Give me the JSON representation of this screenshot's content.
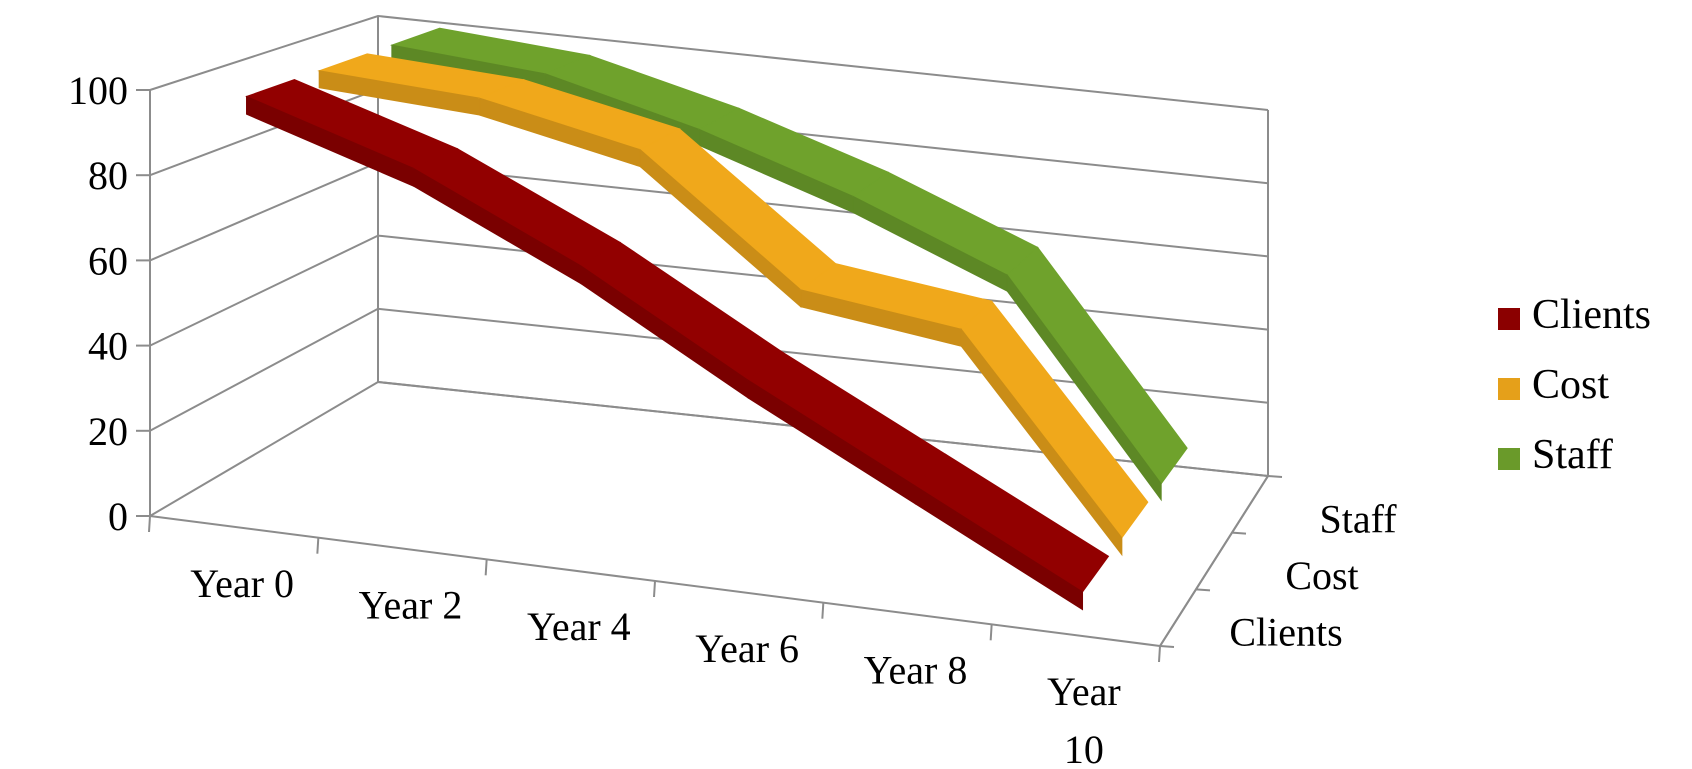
{
  "chart_data": {
    "type": "line",
    "style": "3d-ribbon",
    "title": "",
    "xlabel": "",
    "ylabel": "",
    "ylim": [
      0,
      100
    ],
    "yticks": [
      0,
      20,
      40,
      60,
      80,
      100
    ],
    "grid": true,
    "legend_position": "right",
    "categories": [
      "Year 0",
      "Year 2",
      "Year 4",
      "Year 6",
      "Year 8",
      "Year 10"
    ],
    "category_label_lines": [
      [
        "Year 0"
      ],
      [
        "Year 2"
      ],
      [
        "Year 4"
      ],
      [
        "Year 6"
      ],
      [
        "Year 8"
      ],
      [
        "Year",
        "10"
      ]
    ],
    "depth_labels": [
      "Clients",
      "Cost",
      "Staff"
    ],
    "series": [
      {
        "name": "Clients",
        "color": "#8B0000",
        "values": [
          100,
          88,
          70,
          48,
          28,
          8
        ]
      },
      {
        "name": "Cost",
        "color": "#E5A01A",
        "values": [
          100,
          98,
          90,
          60,
          55,
          8
        ]
      },
      {
        "name": "Staff",
        "color": "#6A9A2A",
        "values": [
          100,
          97,
          87,
          74,
          58,
          8
        ]
      }
    ]
  }
}
